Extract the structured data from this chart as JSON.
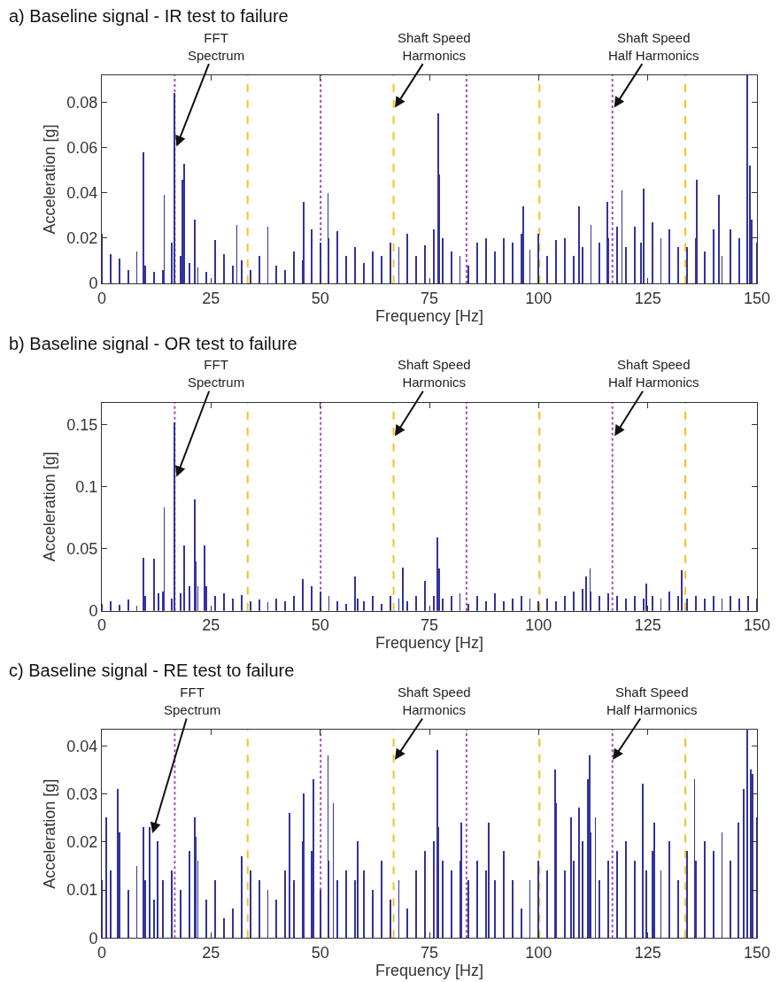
{
  "chart_data": [
    {
      "type": "bar",
      "title": "a) Baseline signal - IR test to failure",
      "xlabel": "Frequency [Hz]",
      "ylabel": "Acceleration [g]",
      "color": "#33339e",
      "x": [
        0,
        2,
        4,
        6,
        8,
        9.6,
        10,
        12,
        14,
        14.3,
        16,
        16.6,
        18,
        18.5,
        18.9,
        20,
        21.2,
        22,
        24,
        26,
        28,
        30,
        30.9,
        32,
        34,
        36,
        38,
        40,
        42,
        44,
        46,
        46.3,
        48,
        50,
        51.8,
        52,
        54,
        56,
        58,
        60,
        62,
        64,
        66,
        68,
        70,
        72,
        74,
        76,
        77,
        77.2,
        78,
        80,
        82,
        84,
        86,
        88,
        90,
        92,
        94,
        96,
        96.5,
        98,
        100,
        102,
        104,
        106,
        108,
        109.2,
        110,
        112,
        114,
        115.8,
        116,
        118,
        119.1,
        120,
        122,
        123.4,
        124.1,
        126,
        128,
        130,
        132,
        134,
        136,
        136.2,
        138,
        140,
        141.2,
        142,
        144,
        146,
        147.8,
        148.3,
        148.8,
        150
      ],
      "values": [
        0.022,
        0.013,
        0.011,
        0.006,
        0.014,
        0.058,
        0.008,
        0.005,
        0.006,
        0.039,
        0.018,
        0.084,
        0.012,
        0.046,
        0.053,
        0.009,
        0.028,
        0.007,
        0.005,
        0.019,
        0.013,
        0.008,
        0.026,
        0.01,
        0.006,
        0.012,
        0.025,
        0.008,
        0.006,
        0.014,
        0.01,
        0.036,
        0.024,
        0.018,
        0.04,
        0.02,
        0.023,
        0.012,
        0.016,
        0.009,
        0.014,
        0.012,
        0.018,
        0.016,
        0.022,
        0.012,
        0.017,
        0.024,
        0.075,
        0.048,
        0.02,
        0.014,
        0.012,
        0.008,
        0.018,
        0.02,
        0.014,
        0.02,
        0.018,
        0.022,
        0.034,
        0.015,
        0.022,
        0.012,
        0.019,
        0.02,
        0.012,
        0.034,
        0.016,
        0.026,
        0.018,
        0.036,
        0.02,
        0.025,
        0.041,
        0.016,
        0.025,
        0.018,
        0.042,
        0.027,
        0.02,
        0.024,
        0.016,
        0.016,
        0.02,
        0.046,
        0.014,
        0.024,
        0.039,
        0.012,
        0.024,
        0.02,
        0.092,
        0.052,
        0.028,
        0.018
      ],
      "xlim": [
        0,
        150
      ],
      "xticks": [
        0,
        25,
        50,
        75,
        100,
        125,
        150
      ],
      "ylim": [
        0,
        0.092
      ],
      "yticks": [
        0,
        0.02,
        0.04,
        0.06,
        0.08
      ],
      "ref_lines": [
        {
          "axis": "x",
          "value": 16.7,
          "color": "#b04ab8",
          "line_style": "dotted"
        },
        {
          "axis": "x",
          "value": 33.4,
          "color": "#f5c024",
          "line_style": "dashed"
        },
        {
          "axis": "x",
          "value": 50.1,
          "color": "#b04ab8",
          "line_style": "dotted"
        },
        {
          "axis": "x",
          "value": 66.8,
          "color": "#f5c024",
          "line_style": "dashed"
        },
        {
          "axis": "x",
          "value": 83.5,
          "color": "#b04ab8",
          "line_style": "dotted"
        },
        {
          "axis": "x",
          "value": 100.2,
          "color": "#f5c024",
          "line_style": "dashed"
        },
        {
          "axis": "x",
          "value": 116.9,
          "color": "#b04ab8",
          "line_style": "dotted"
        },
        {
          "axis": "x",
          "value": 133.6,
          "color": "#f5c024",
          "line_style": "dashed"
        }
      ],
      "annotations": [
        {
          "text": "FFT\nSpectrum",
          "x": 17.1,
          "y": 0.0605
        },
        {
          "text": "Shaft Speed\nHarmonics",
          "x": 67.1,
          "y": 0.0777
        },
        {
          "text": "Shaft Speed\nHalf Harmonics",
          "x": 117.3,
          "y": 0.0777
        }
      ]
    },
    {
      "type": "bar",
      "title": "b) Baseline signal - OR test to failure",
      "xlabel": "Frequency [Hz]",
      "ylabel": "Acceleration [g]",
      "color": "#33339e",
      "x": [
        0,
        2,
        4,
        6,
        8,
        9.6,
        10,
        12,
        13,
        14,
        14.3,
        16,
        16.6,
        18,
        18.9,
        20,
        21.2,
        21.5,
        22,
        23.6,
        24,
        26,
        28,
        30,
        32,
        34,
        36,
        38,
        40,
        42,
        44,
        46,
        48,
        50,
        52,
        54,
        56,
        57.9,
        58.6,
        60,
        62,
        64,
        66,
        68,
        69,
        70,
        72,
        74,
        76,
        76.9,
        77.2,
        78,
        80,
        82,
        84,
        86,
        88,
        90,
        92,
        94,
        96,
        98,
        100,
        102,
        104,
        106,
        108,
        110,
        110.8,
        111.8,
        112,
        114,
        116,
        118,
        120,
        122,
        124,
        124.6,
        126,
        128,
        130,
        132,
        132.7,
        134,
        136,
        138,
        140,
        142,
        144,
        146,
        148,
        150
      ],
      "values": [
        0.006,
        0.008,
        0.005,
        0.009,
        0.004,
        0.043,
        0.012,
        0.042,
        0.014,
        0.016,
        0.084,
        0.01,
        0.152,
        0.014,
        0.053,
        0.02,
        0.09,
        0.04,
        0.02,
        0.053,
        0.02,
        0.012,
        0.014,
        0.01,
        0.013,
        0.008,
        0.009,
        0.007,
        0.01,
        0.008,
        0.012,
        0.026,
        0.02,
        0.016,
        0.012,
        0.008,
        0.006,
        0.028,
        0.01,
        0.008,
        0.012,
        0.006,
        0.012,
        0.01,
        0.035,
        0.008,
        0.012,
        0.024,
        0.012,
        0.059,
        0.034,
        0.01,
        0.012,
        0.014,
        0.006,
        0.012,
        0.008,
        0.014,
        0.008,
        0.01,
        0.012,
        0.01,
        0.008,
        0.01,
        0.008,
        0.012,
        0.016,
        0.018,
        0.028,
        0.034,
        0.016,
        0.012,
        0.014,
        0.012,
        0.01,
        0.012,
        0.01,
        0.022,
        0.012,
        0.01,
        0.016,
        0.012,
        0.033,
        0.01,
        0.012,
        0.01,
        0.012,
        0.01,
        0.012,
        0.01,
        0.012,
        0.01
      ],
      "xlim": [
        0,
        150
      ],
      "xticks": [
        0,
        25,
        50,
        75,
        100,
        125,
        150
      ],
      "ylim": [
        0,
        0.168
      ],
      "yticks": [
        0,
        0.05,
        0.1,
        0.15
      ],
      "ref_lines": [
        {
          "axis": "x",
          "value": 16.7,
          "color": "#b04ab8",
          "line_style": "dotted"
        },
        {
          "axis": "x",
          "value": 33.4,
          "color": "#f5c024",
          "line_style": "dashed"
        },
        {
          "axis": "x",
          "value": 50.1,
          "color": "#b04ab8",
          "line_style": "dotted"
        },
        {
          "axis": "x",
          "value": 66.8,
          "color": "#f5c024",
          "line_style": "dashed"
        },
        {
          "axis": "x",
          "value": 83.5,
          "color": "#b04ab8",
          "line_style": "dotted"
        },
        {
          "axis": "x",
          "value": 100.2,
          "color": "#f5c024",
          "line_style": "dashed"
        },
        {
          "axis": "x",
          "value": 116.9,
          "color": "#b04ab8",
          "line_style": "dotted"
        },
        {
          "axis": "x",
          "value": 133.6,
          "color": "#f5c024",
          "line_style": "dashed"
        }
      ],
      "annotations": [
        {
          "text": "FFT\nSpectrum",
          "x": 17.1,
          "y": 0.108
        },
        {
          "text": "Shaft Speed\nHarmonics",
          "x": 67.1,
          "y": 0.141
        },
        {
          "text": "Shaft Speed\nHalf Harmonics",
          "x": 117.4,
          "y": 0.141
        }
      ]
    },
    {
      "type": "bar",
      "title": "c) Baseline signal - RE test to failure",
      "xlabel": "Frequency [Hz]",
      "ylabel": "Acceleration [g]",
      "color": "#33339e",
      "x": [
        0,
        1,
        2,
        3.6,
        4,
        6,
        8,
        9.6,
        10,
        11,
        12,
        12.8,
        14,
        16,
        18,
        20,
        21.2,
        21.6,
        22,
        24,
        26,
        28,
        30,
        32,
        34,
        36,
        38,
        40,
        42,
        43,
        44,
        46,
        46.3,
        48,
        48.5,
        50,
        51.8,
        52,
        53,
        54,
        56,
        58,
        58.6,
        60,
        62,
        64,
        66,
        68,
        70,
        72,
        74,
        76,
        76.8,
        77,
        78,
        80,
        82,
        82.3,
        84,
        86,
        88,
        88.5,
        90,
        92,
        94,
        96,
        98,
        100,
        102,
        103.7,
        104,
        106,
        107.4,
        108,
        109.2,
        110,
        111.2,
        111.7,
        112,
        113,
        114,
        116,
        118,
        120,
        122,
        123.8,
        124.6,
        126,
        126.4,
        128,
        130,
        132,
        134,
        135.7,
        136,
        138,
        140,
        142,
        144,
        145.8,
        147,
        147.8,
        148.5,
        149,
        150
      ],
      "values": [
        0.012,
        0.025,
        0.014,
        0.031,
        0.022,
        0.01,
        0.015,
        0.023,
        0.012,
        0.023,
        0.008,
        0.02,
        0.012,
        0.014,
        0.01,
        0.018,
        0.025,
        0.021,
        0.016,
        0.008,
        0.012,
        0.004,
        0.006,
        0.017,
        0.014,
        0.012,
        0.01,
        0.008,
        0.014,
        0.026,
        0.012,
        0.02,
        0.03,
        0.018,
        0.033,
        0.01,
        0.038,
        0.016,
        0.028,
        0.012,
        0.014,
        0.012,
        0.02,
        0.014,
        0.01,
        0.016,
        0.008,
        0.012,
        0.006,
        0.014,
        0.018,
        0.02,
        0.039,
        0.023,
        0.016,
        0.014,
        0.016,
        0.024,
        0.012,
        0.016,
        0.014,
        0.024,
        0.012,
        0.018,
        0.012,
        0.006,
        0.012,
        0.016,
        0.014,
        0.035,
        0.028,
        0.014,
        0.025,
        0.016,
        0.027,
        0.02,
        0.033,
        0.038,
        0.022,
        0.025,
        0.012,
        0.016,
        0.018,
        0.02,
        0.016,
        0.032,
        0.014,
        0.018,
        0.024,
        0.014,
        0.02,
        0.012,
        0.018,
        0.033,
        0.016,
        0.02,
        0.018,
        0.022,
        0.016,
        0.024,
        0.031,
        0.0433,
        0.035,
        0.034,
        0.025
      ],
      "xlim": [
        0,
        150
      ],
      "xticks": [
        0,
        25,
        50,
        75,
        100,
        125,
        150
      ],
      "ylim": [
        0,
        0.0433
      ],
      "yticks": [
        0,
        0.01,
        0.02,
        0.03,
        0.04
      ],
      "ref_lines": [
        {
          "axis": "x",
          "value": 16.7,
          "color": "#b04ab8",
          "line_style": "dotted"
        },
        {
          "axis": "x",
          "value": 33.4,
          "color": "#f5c024",
          "line_style": "dashed"
        },
        {
          "axis": "x",
          "value": 50.1,
          "color": "#b04ab8",
          "line_style": "dotted"
        },
        {
          "axis": "x",
          "value": 66.8,
          "color": "#f5c024",
          "line_style": "dashed"
        },
        {
          "axis": "x",
          "value": 83.5,
          "color": "#b04ab8",
          "line_style": "dotted"
        },
        {
          "axis": "x",
          "value": 100.2,
          "color": "#f5c024",
          "line_style": "dashed"
        },
        {
          "axis": "x",
          "value": 116.9,
          "color": "#b04ab8",
          "line_style": "dotted"
        },
        {
          "axis": "x",
          "value": 133.6,
          "color": "#f5c024",
          "line_style": "dashed"
        }
      ],
      "annotations": [
        {
          "text": "FFT\nSpectrum",
          "x": 11.6,
          "y": 0.0218
        },
        {
          "text": "Shaft Speed\nHarmonics",
          "x": 67.1,
          "y": 0.0371
        },
        {
          "text": "Shaft Speed\nHalf Harmonics",
          "x": 117.0,
          "y": 0.0371
        }
      ]
    }
  ]
}
